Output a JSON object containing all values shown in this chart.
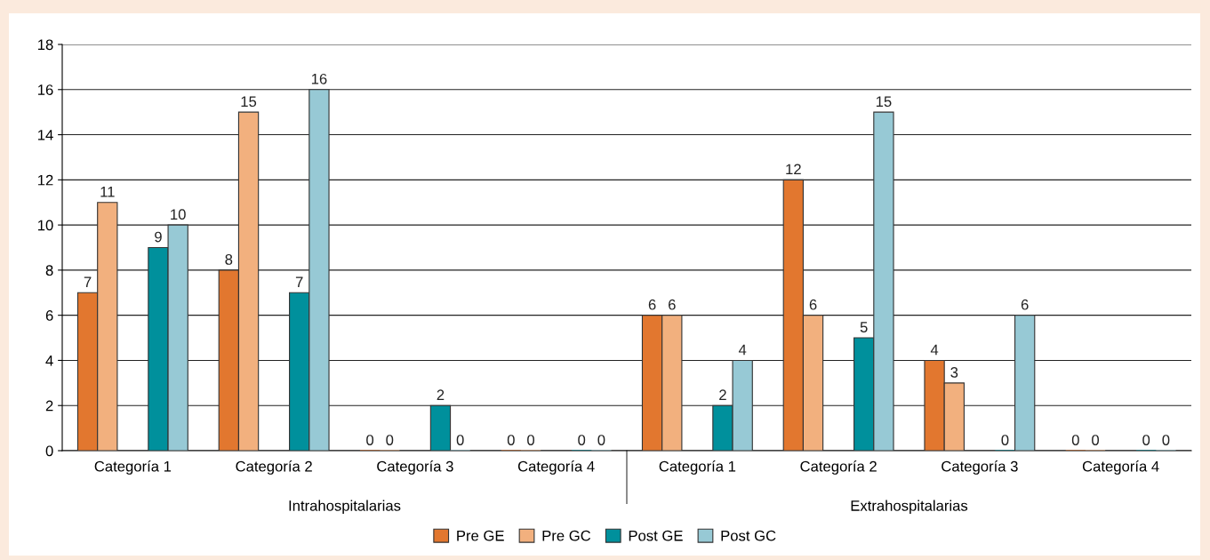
{
  "chart_data": {
    "type": "bar",
    "categories": [
      "Categoría 1",
      "Categoría 2",
      "Categoría 3",
      "Categoría 4",
      "Categoría 1",
      "Categoría 2",
      "Categoría 3",
      "Categoría 4"
    ],
    "series": [
      {
        "name": "Pre GE",
        "color": "#e2772f",
        "values": [
          7,
          8,
          0,
          0,
          6,
          12,
          4,
          0
        ]
      },
      {
        "name": "Pre GC",
        "color": "#f2b07e",
        "values": [
          11,
          15,
          0,
          0,
          6,
          6,
          3,
          0
        ]
      },
      {
        "name": "Post GE",
        "color": "#00909c",
        "values": [
          9,
          7,
          2,
          0,
          2,
          5,
          0,
          0
        ]
      },
      {
        "name": "Post GC",
        "color": "#97c9d5",
        "values": [
          10,
          16,
          0,
          0,
          4,
          15,
          6,
          0
        ]
      }
    ],
    "annotations": [
      "Intrahospitalarias",
      "Extrahospitalarias"
    ],
    "ylim": [
      0,
      18
    ],
    "yticks": [
      0,
      2,
      4,
      6,
      8,
      10,
      12,
      14,
      16,
      18
    ],
    "grid": "y",
    "legend": "bottom",
    "data_labels": true
  }
}
